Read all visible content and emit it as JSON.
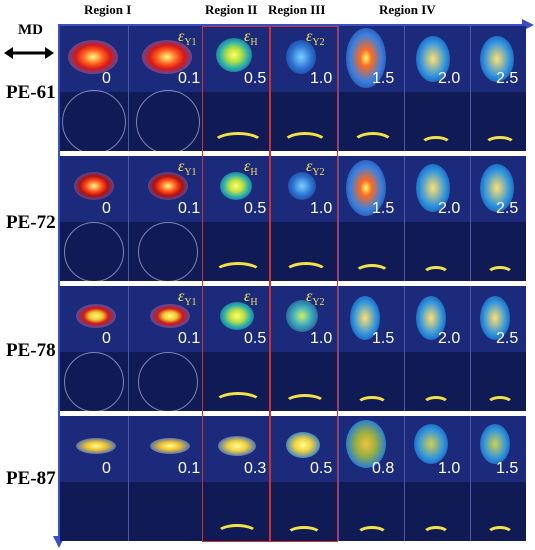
{
  "regions": [
    "Region I",
    "Region II",
    "Region III",
    "Region IV"
  ],
  "md_label": "MD",
  "samples": [
    {
      "name": "PE-61",
      "strains": [
        "0",
        "0.1",
        "0.5",
        "1.0",
        "1.5",
        "2.0",
        "2.5"
      ]
    },
    {
      "name": "PE-72",
      "strains": [
        "0",
        "0.1",
        "0.5",
        "1.0",
        "1.5",
        "2.0",
        "2.5"
      ]
    },
    {
      "name": "PE-78",
      "strains": [
        "0",
        "0.1",
        "0.5",
        "1.0",
        "1.5",
        "2.0",
        "2.5"
      ]
    },
    {
      "name": "PE-87",
      "strains": [
        "0",
        "0.1",
        "0.3",
        "0.5",
        "0.8",
        "1.0",
        "1.5"
      ]
    }
  ],
  "epsilon_labels": [
    {
      "main": "ε",
      "sub": "Y1"
    },
    {
      "main": "ε",
      "sub": "H"
    },
    {
      "main": "ε",
      "sub": "Y2"
    }
  ],
  "colors": {
    "region_border": "#d03030",
    "axis": "#3b4fc4",
    "eps_text": "#f0e060",
    "detector_bg": "#1b2a7a"
  }
}
